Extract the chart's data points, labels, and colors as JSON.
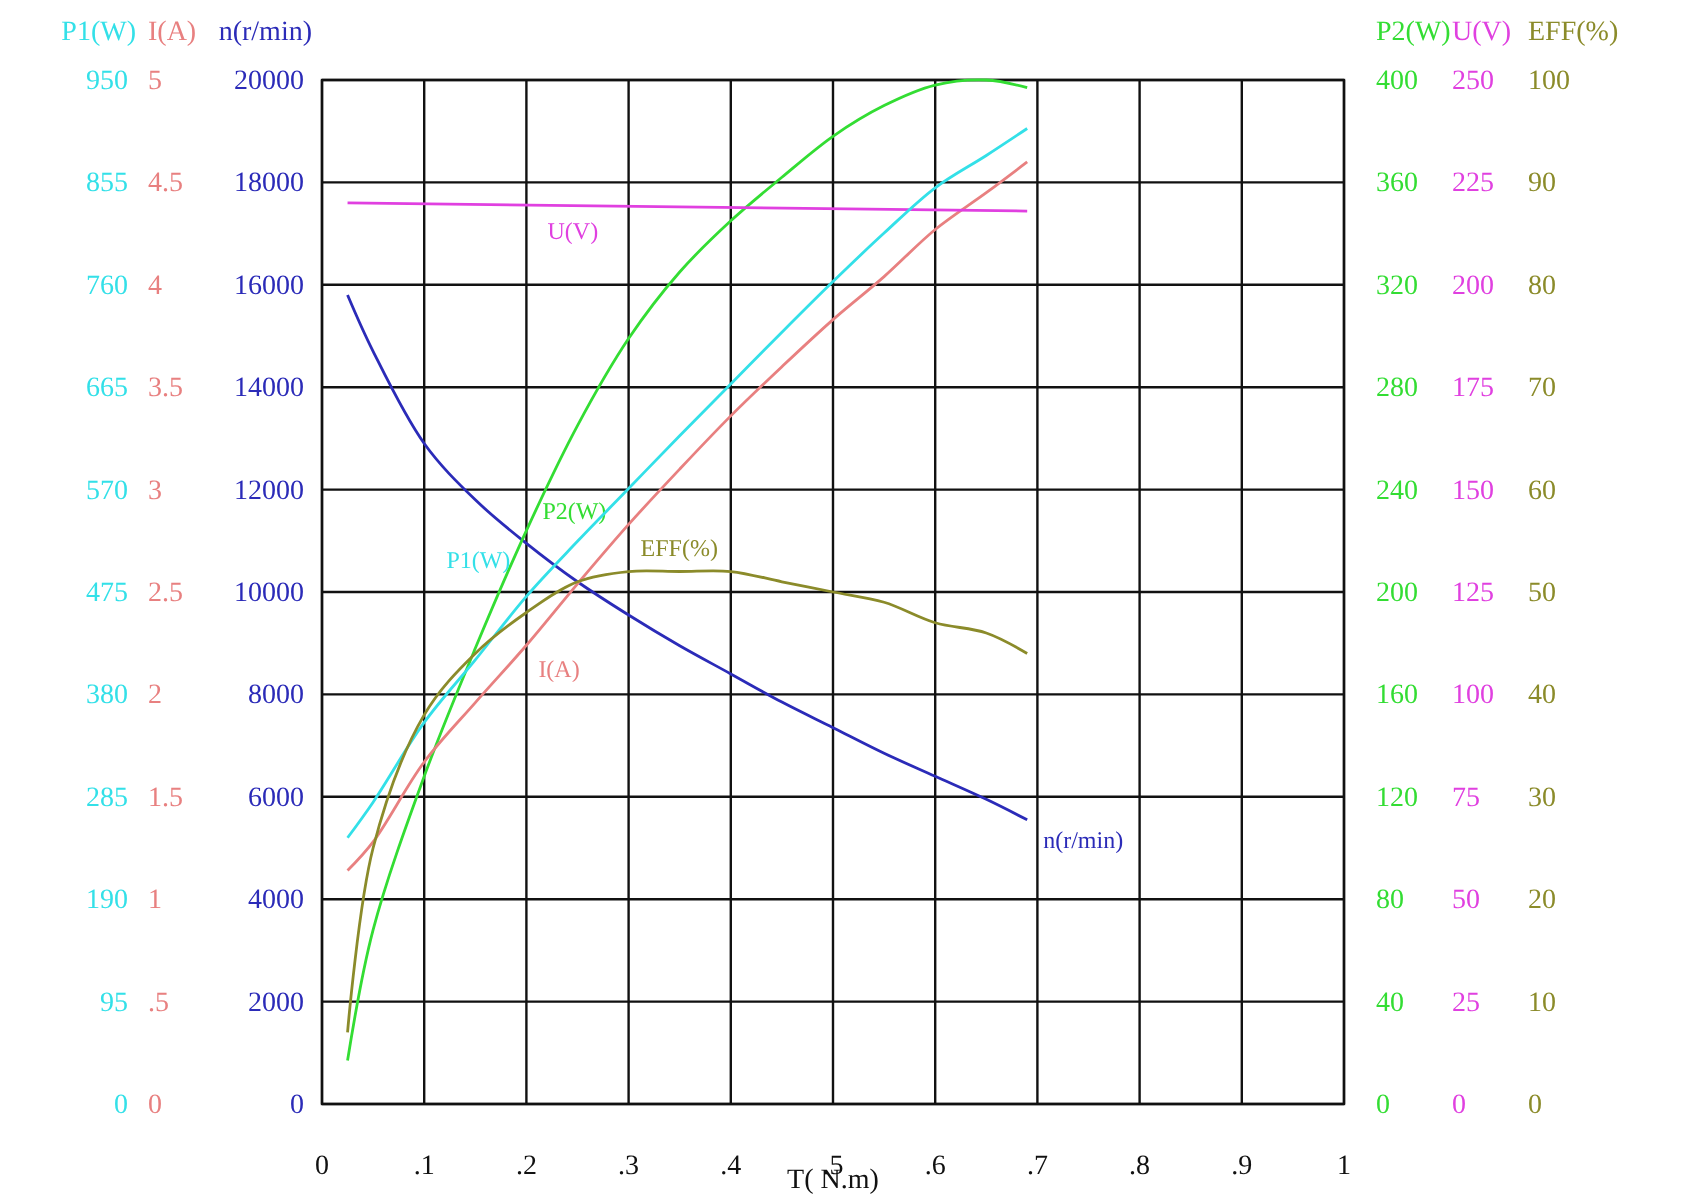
{
  "chart_data": [
    {
      "type": "line",
      "xlabel": "T( N.m)",
      "ylabel": "n(r/min)",
      "y2label": "P2(W)",
      "x": [
        0.025,
        0.05,
        0.1,
        0.15,
        0.2,
        0.25,
        0.3,
        0.35,
        0.4,
        0.45,
        0.5,
        0.55,
        0.6,
        0.65,
        0.69
      ],
      "xlim": [
        0,
        1
      ],
      "xticks": [
        0,
        {
          "value": 0.1,
          "label": ".1"
        },
        {
          "value": 0.2,
          "label": ".2"
        },
        {
          "value": 0.3,
          "label": ".3"
        },
        {
          "value": 0.4,
          "label": ".4"
        },
        {
          "value": 0.5,
          "label": ".5"
        },
        {
          "value": 0.6,
          "label": ".6"
        },
        {
          "value": 0.7,
          "label": ".7"
        },
        {
          "value": 0.8,
          "label": ".8"
        },
        {
          "value": 0.9,
          "label": ".9"
        },
        1
      ],
      "ylim": [
        0,
        20000
      ],
      "yticks": [
        0,
        2000,
        4000,
        6000,
        8000,
        10000,
        12000,
        14000,
        16000,
        18000,
        20000
      ],
      "y2lim": [
        0,
        400
      ],
      "y2ticks": [
        0,
        40,
        80,
        120,
        160,
        200,
        240,
        280,
        320,
        360,
        400
      ],
      "grid": true,
      "legend": false,
      "marker": "none",
      "line_style": "solid",
      "series": [
        {
          "name": "n(r/min)",
          "color": "#2b2bb8",
          "values": [
            15800,
            14700,
            12900,
            11800,
            10950,
            10200,
            9550,
            8950,
            8400,
            7850,
            7350,
            6850,
            6400,
            5950,
            5550
          ]
        },
        {
          "name": "P2(W)",
          "color": "#33dd33",
          "axis": "y2",
          "values": [
            17,
            68,
            128,
            178,
            224,
            265,
            299,
            325,
            345,
            362,
            378,
            390,
            398,
            400,
            397
          ]
        }
      ]
    },
    {
      "type": "line",
      "x": [
        0.025,
        0.05,
        0.1,
        0.15,
        0.2,
        0.25,
        0.3,
        0.35,
        0.4,
        0.45,
        0.5,
        0.55,
        0.6,
        0.65,
        0.69
      ],
      "xlim": [
        0,
        1
      ],
      "tick_labels": "y",
      "ylabel": "I(A)",
      "y2label": "U(V)",
      "ylim": [
        0,
        5
      ],
      "yticks": [
        0,
        {
          "value": 0.5,
          "label": ".5"
        },
        1,
        1.5,
        2,
        2.5,
        3,
        3.5,
        4,
        4.5,
        5
      ],
      "y2lim": [
        0,
        250
      ],
      "y2ticks": [
        0,
        25,
        50,
        75,
        100,
        125,
        150,
        175,
        200,
        225,
        250
      ],
      "marker": "none",
      "line_style": "solid",
      "series": [
        {
          "name": "I(A)",
          "color": "#e88080",
          "values": [
            1.14,
            1.28,
            1.67,
            1.96,
            2.24,
            2.54,
            2.83,
            3.1,
            3.36,
            3.6,
            3.83,
            4.04,
            4.27,
            4.45,
            4.6
          ]
        },
        {
          "name": "U(V)",
          "color": "#e040e0",
          "axis": "y2",
          "x": [
            0.025,
            0.69
          ],
          "values": [
            220,
            218
          ]
        }
      ]
    },
    {
      "type": "line",
      "x": [
        0.025,
        0.05,
        0.1,
        0.15,
        0.2,
        0.25,
        0.3,
        0.35,
        0.4,
        0.45,
        0.5,
        0.55,
        0.6,
        0.65,
        0.69
      ],
      "xlim": [
        0,
        1
      ],
      "tick_labels": "y",
      "ylabel": "P1(W)",
      "y2label": "EFF(%)",
      "ylim": [
        0,
        950
      ],
      "yticks": [
        0,
        95,
        190,
        285,
        380,
        475,
        570,
        665,
        760,
        855,
        950
      ],
      "y2lim": [
        0,
        100
      ],
      "y2ticks": [
        0,
        10,
        20,
        30,
        40,
        50,
        60,
        70,
        80,
        90,
        100
      ],
      "marker": "none",
      "line_style": "solid",
      "series": [
        {
          "name": "P1(W)",
          "color": "#33e0e8",
          "values": [
            247,
            280,
            354,
            412,
            471,
            522,
            571,
            620,
            668,
            716,
            763,
            808,
            850,
            880,
            905
          ]
        },
        {
          "name": "EFF(%)",
          "color": "#8b8b2a",
          "axis": "y2",
          "values": [
            7,
            25,
            38,
            44,
            48,
            51,
            52,
            52,
            52,
            51,
            50,
            49,
            47,
            46,
            44
          ]
        }
      ]
    }
  ]
}
